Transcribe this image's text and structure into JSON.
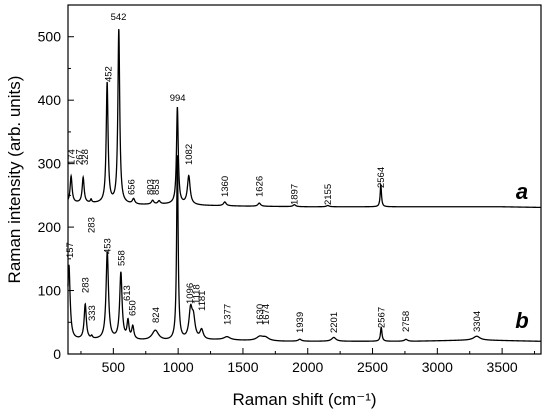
{
  "chart_data": {
    "type": "line",
    "xlabel": "Raman shift (cm⁻¹)",
    "ylabel": "Raman intensity (arb. units)",
    "xlim": [
      150,
      3800
    ],
    "ylim": [
      0,
      550
    ],
    "x_ticks": [
      500,
      1000,
      1500,
      2000,
      2500,
      3000,
      3500
    ],
    "x_tick_labels": [
      "500",
      "1000",
      "1500",
      "2000",
      "2500",
      "3000",
      "3500"
    ],
    "y_ticks": [
      0,
      100,
      200,
      300,
      400,
      500
    ],
    "y_tick_labels": [
      "0",
      "100",
      "200",
      "300",
      "400",
      "500"
    ],
    "grid": false,
    "line_color": "#000000",
    "series": [
      {
        "name": "a",
        "baseline": [
          [
            150,
            238
          ],
          [
            400,
            237
          ],
          [
            700,
            235
          ],
          [
            950,
            236
          ],
          [
            1200,
            234
          ],
          [
            1500,
            233
          ],
          [
            2000,
            232
          ],
          [
            2500,
            232
          ],
          [
            3000,
            232
          ],
          [
            3500,
            232
          ],
          [
            3800,
            231
          ]
        ],
        "peaks": [
          {
            "x": 174,
            "height": 42,
            "width": 18
          },
          {
            "x": 267,
            "height": 40,
            "width": 18
          },
          {
            "x": 328,
            "height": 5,
            "width": 12
          },
          {
            "x": 452,
            "height": 190,
            "width": 17
          },
          {
            "x": 542,
            "height": 275,
            "width": 17
          },
          {
            "x": 656,
            "height": 8,
            "width": 22
          },
          {
            "x": 803,
            "height": 6,
            "width": 22
          },
          {
            "x": 853,
            "height": 5,
            "width": 22
          },
          {
            "x": 994,
            "height": 153,
            "width": 16
          },
          {
            "x": 1082,
            "height": 45,
            "width": 25
          },
          {
            "x": 1360,
            "height": 6,
            "width": 25
          },
          {
            "x": 1626,
            "height": 5,
            "width": 25
          },
          {
            "x": 1897,
            "height": 3,
            "width": 25
          },
          {
            "x": 2155,
            "height": 2,
            "width": 25
          },
          {
            "x": 2564,
            "height": 35,
            "width": 12
          }
        ],
        "peak_labels": [
          "174",
          "267",
          "328",
          "452",
          "542",
          "656",
          "803",
          "853",
          "994",
          "1082",
          "1360",
          "1626",
          "1897",
          "2155",
          "2564",
          "283"
        ]
      },
      {
        "name": "b",
        "baseline": [
          [
            150,
            22
          ],
          [
            500,
            22
          ],
          [
            900,
            20
          ],
          [
            1300,
            22
          ],
          [
            1800,
            20
          ],
          [
            2300,
            20
          ],
          [
            2800,
            20
          ],
          [
            3300,
            22
          ],
          [
            3800,
            20
          ]
        ],
        "peaks": [
          {
            "x": 157,
            "height": 118,
            "width": 22
          },
          {
            "x": 283,
            "height": 55,
            "width": 20
          },
          {
            "x": 333,
            "height": 4,
            "width": 14
          },
          {
            "x": 453,
            "height": 138,
            "width": 22
          },
          {
            "x": 558,
            "height": 105,
            "width": 22
          },
          {
            "x": 613,
            "height": 28,
            "width": 18
          },
          {
            "x": 650,
            "height": 20,
            "width": 20
          },
          {
            "x": 824,
            "height": 16,
            "width": 60
          },
          {
            "x": 994,
            "height": 292,
            "width": 14
          },
          {
            "x": 1096,
            "height": 45,
            "width": 30
          },
          {
            "x": 1118,
            "height": 30,
            "width": 30
          },
          {
            "x": 1181,
            "height": 15,
            "width": 30
          },
          {
            "x": 1377,
            "height": 5,
            "width": 60
          },
          {
            "x": 1630,
            "height": 6,
            "width": 60
          },
          {
            "x": 1674,
            "height": 5,
            "width": 60
          },
          {
            "x": 1939,
            "height": 3,
            "width": 30
          },
          {
            "x": 2201,
            "height": 6,
            "width": 40
          },
          {
            "x": 2567,
            "height": 22,
            "width": 14
          },
          {
            "x": 2758,
            "height": 3,
            "width": 30
          },
          {
            "x": 3304,
            "height": 6,
            "width": 60
          }
        ],
        "peak_labels": [
          "157",
          "283",
          "333",
          "453",
          "558",
          "613",
          "650",
          "824",
          "1096",
          "1118",
          "1181",
          "1377",
          "1630",
          "1674",
          "1939",
          "2201",
          "2567",
          "2758",
          "3304"
        ]
      }
    ]
  }
}
